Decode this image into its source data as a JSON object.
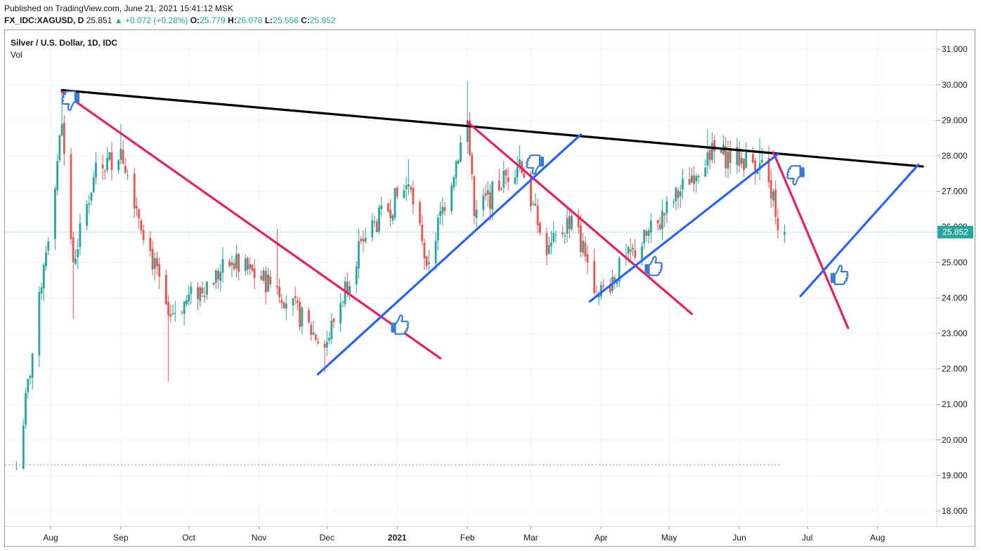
{
  "header": {
    "published": "Published on TradingView.com, June 21, 2021 15:41:12 MSK",
    "symbol": "FX_IDC:XAGUSD, D",
    "last": "25.851",
    "change": "+0.072 (+0.28%)",
    "o_label": "O:",
    "o": "25.779",
    "h_label": "H:",
    "h": "26.078",
    "l_label": "L:",
    "l": "25.556",
    "c_label": "C:",
    "c": "25.852"
  },
  "legend": {
    "title": "Silver / U.S. Dollar, 1D, IDC",
    "vol": "Vol"
  },
  "colors": {
    "up": "#26a69a",
    "down": "#ef5350",
    "resistance": "#000000",
    "down_trend": "#e91e63",
    "up_trend": "#2962ff",
    "price_label": "#26a69a",
    "thumb": "#3a7bd5"
  },
  "chart_data": {
    "type": "candlestick",
    "title": "Silver / U.S. Dollar, 1D, IDC",
    "x_labels": [
      "Aug",
      "Sep",
      "Oct",
      "Nov",
      "Dec",
      "2021",
      "Feb",
      "Mar",
      "Apr",
      "May",
      "Jun",
      "Jul",
      "Aug"
    ],
    "y_ticks": [
      "31.000",
      "30.000",
      "29.000",
      "28.000",
      "27.000",
      "26.000",
      "25.000",
      "24.000",
      "23.000",
      "22.000",
      "21.000",
      "20.000",
      "19.000",
      "18.000"
    ],
    "ylim": [
      17.6,
      31.4
    ],
    "last_price": 25.852,
    "last_price_label": "25.852",
    "reference_line": 19.3,
    "key_prices": [
      {
        "date": "2020-07-17",
        "close": 19.2
      },
      {
        "date": "2020-07-28",
        "close": 24.3
      },
      {
        "date": "2020-08-06",
        "close": 28.9,
        "high": 29.85
      },
      {
        "date": "2020-08-11",
        "close": 25.0,
        "low": 23.4
      },
      {
        "date": "2020-08-20",
        "close": 27.4
      },
      {
        "date": "2020-09-01",
        "close": 28.2,
        "high": 28.9
      },
      {
        "date": "2020-09-22",
        "close": 23.5,
        "low": 21.65
      },
      {
        "date": "2020-10-20",
        "close": 25.0
      },
      {
        "date": "2020-11-09",
        "close": 24.3,
        "high": 25.95
      },
      {
        "date": "2020-11-30",
        "close": 22.6,
        "low": 21.9
      },
      {
        "date": "2020-12-16",
        "close": 25.6
      },
      {
        "date": "2021-01-06",
        "close": 27.2,
        "high": 27.9
      },
      {
        "date": "2021-01-14",
        "close": 24.9
      },
      {
        "date": "2021-02-01",
        "close": 29.0,
        "high": 30.1
      },
      {
        "date": "2021-02-04",
        "close": 26.3
      },
      {
        "date": "2021-02-24",
        "close": 27.9,
        "high": 28.3
      },
      {
        "date": "2021-03-08",
        "close": 25.2
      },
      {
        "date": "2021-03-19",
        "close": 26.3
      },
      {
        "date": "2021-03-31",
        "close": 24.1,
        "low": 23.8
      },
      {
        "date": "2021-04-26",
        "close": 26.1
      },
      {
        "date": "2021-05-18",
        "close": 28.1,
        "high": 28.75
      },
      {
        "date": "2021-06-10",
        "close": 27.8,
        "high": 28.5
      },
      {
        "date": "2021-06-16",
        "close": 27.0
      },
      {
        "date": "2021-06-18",
        "close": 25.9
      },
      {
        "date": "2021-06-21",
        "open": 25.779,
        "high": 26.078,
        "low": 25.556,
        "close": 25.852
      }
    ],
    "trendlines": [
      {
        "name": "resistance",
        "kind": "resistance",
        "from": {
          "date": "2020-08-06",
          "price": 29.85
        },
        "to": {
          "date": "2021-08-21",
          "price": 27.7
        }
      },
      {
        "name": "downtrend-1",
        "kind": "down_trend",
        "from": {
          "date": "2020-08-06",
          "price": 29.8
        },
        "to": {
          "date": "2021-01-20",
          "price": 22.3
        }
      },
      {
        "name": "downtrend-2",
        "kind": "down_trend",
        "from": {
          "date": "2021-02-01",
          "price": 28.95
        },
        "to": {
          "date": "2021-05-11",
          "price": 23.55
        }
      },
      {
        "name": "downtrend-3",
        "kind": "down_trend",
        "from": {
          "date": "2021-06-16",
          "price": 28.1
        },
        "to": {
          "date": "2021-07-19",
          "price": 23.15
        }
      },
      {
        "name": "uptrend-1",
        "kind": "up_trend",
        "from": {
          "date": "2020-11-27",
          "price": 21.85
        },
        "to": {
          "date": "2021-03-23",
          "price": 28.6
        }
      },
      {
        "name": "uptrend-2",
        "kind": "up_trend",
        "from": {
          "date": "2021-03-27",
          "price": 23.9
        },
        "to": {
          "date": "2021-06-18",
          "price": 28.05
        }
      },
      {
        "name": "uptrend-3",
        "kind": "up_trend",
        "from": {
          "date": "2021-06-28",
          "price": 24.05
        },
        "to": {
          "date": "2021-08-19",
          "price": 27.75
        }
      }
    ],
    "annotations": [
      {
        "name": "thumb-down-1",
        "kind": "thumbs-down",
        "date": "2020-08-10",
        "price": 29.5
      },
      {
        "name": "thumb-up-1",
        "kind": "thumbs-up",
        "date": "2021-01-02",
        "price": 23.3
      },
      {
        "name": "thumb-down-2",
        "kind": "thumbs-down",
        "date": "2021-03-03",
        "price": 27.7
      },
      {
        "name": "thumb-up-2",
        "kind": "thumbs-up",
        "date": "2021-04-24",
        "price": 24.95
      },
      {
        "name": "thumb-down-3",
        "kind": "thumbs-down",
        "date": "2021-06-26",
        "price": 27.4
      },
      {
        "name": "thumb-up-3",
        "kind": "thumbs-up",
        "date": "2021-07-15",
        "price": 24.7
      }
    ]
  }
}
